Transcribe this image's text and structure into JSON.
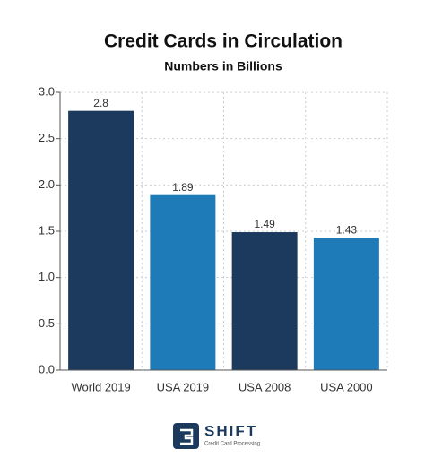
{
  "chart_data": {
    "type": "bar",
    "title": "Credit Cards in Circulation",
    "subtitle": "Numbers in Billions",
    "categories": [
      "World 2019",
      "USA 2019",
      "USA 2008",
      "USA 2000"
    ],
    "values": [
      2.8,
      1.89,
      1.49,
      1.43
    ],
    "colors": [
      "#1c3a5e",
      "#1f7bb8",
      "#1c3a5e",
      "#1f7bb8"
    ],
    "ylim": [
      0,
      3
    ],
    "yticks": [
      {
        "value": 0,
        "label": "0.0"
      },
      0.5,
      {
        "value": 1,
        "label": "1.0"
      },
      1.5,
      {
        "value": 2,
        "label": "2.0"
      },
      2.5,
      {
        "value": 3,
        "label": "3.0"
      }
    ],
    "grid": true
  },
  "logo": {
    "name": "SHIFT",
    "tagline": "Credit Card Processing"
  }
}
